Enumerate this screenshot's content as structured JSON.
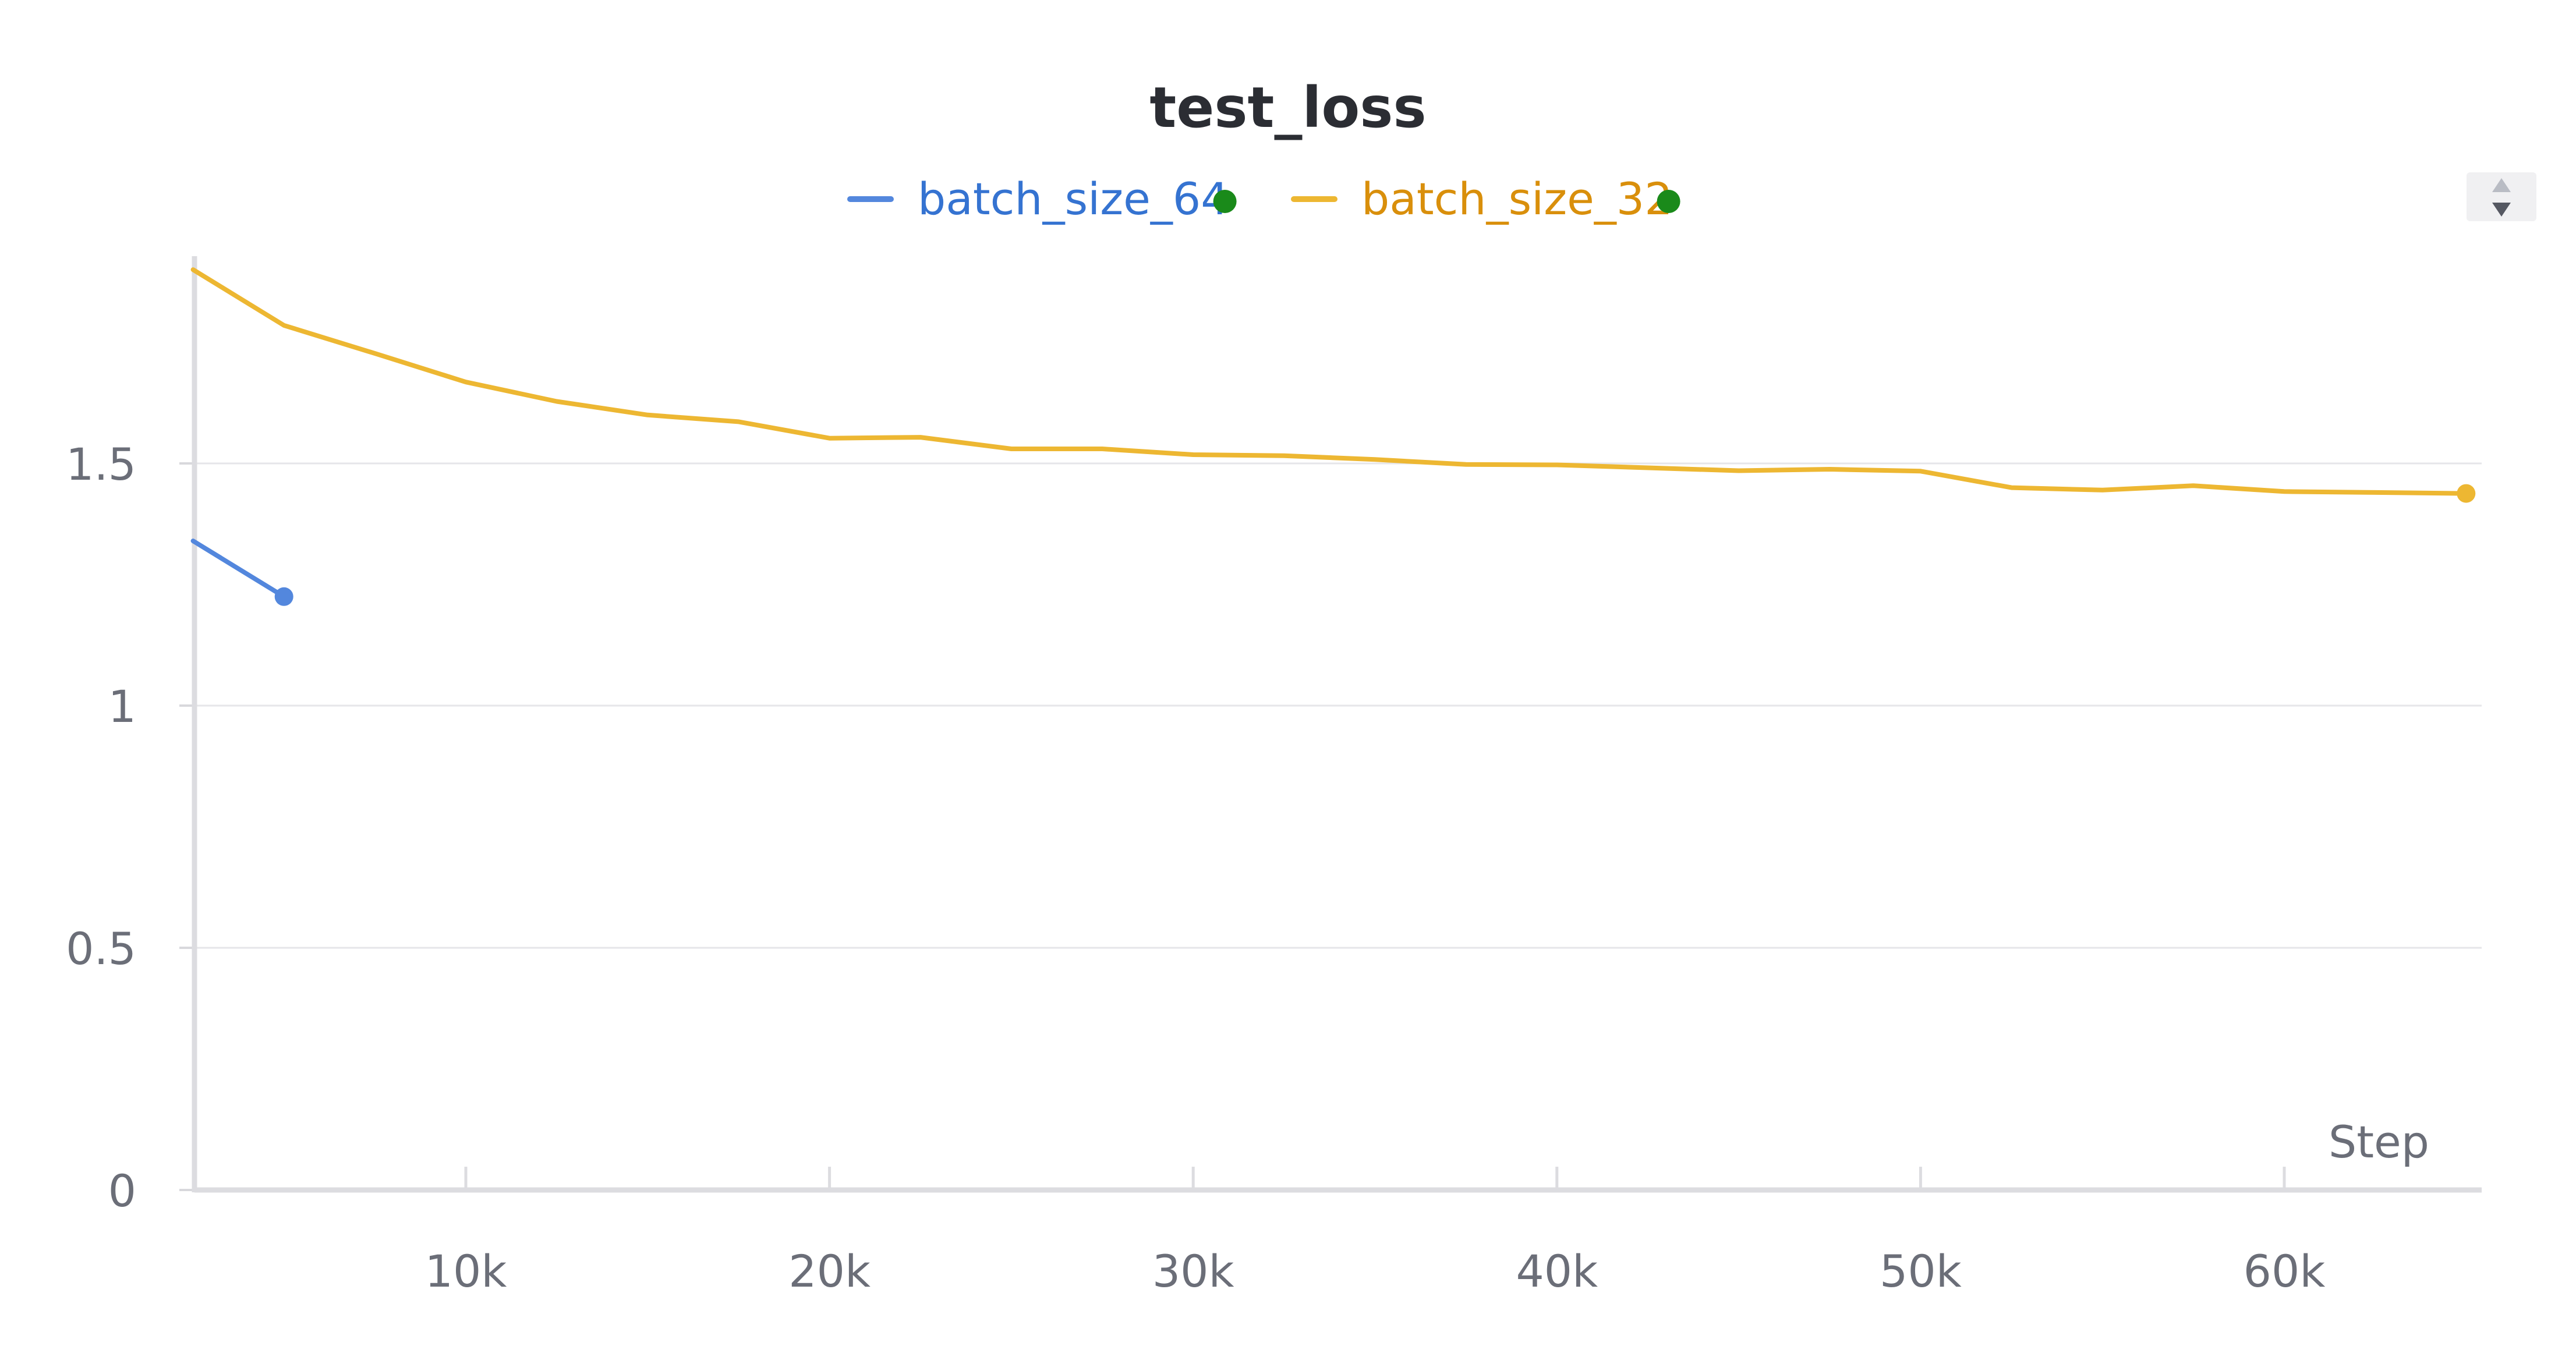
{
  "chart_data": {
    "type": "line",
    "title": "test_loss",
    "xlabel": "Step",
    "ylabel": "",
    "xlim": [
      2500,
      65500
    ],
    "ylim": [
      0,
      1.9
    ],
    "x_ticks": [
      10000,
      20000,
      30000,
      40000,
      50000,
      60000
    ],
    "x_tick_labels": [
      "10k",
      "20k",
      "30k",
      "40k",
      "50k",
      "60k"
    ],
    "y_ticks": [
      0,
      0.5,
      1,
      1.5
    ],
    "y_tick_labels": [
      "0",
      "0.5",
      "1",
      "1.5"
    ],
    "grid": true,
    "legend_position": "top-center",
    "series": [
      {
        "name": "batch_size_64",
        "color": "#5387dd",
        "status_color": "#1a8a1a",
        "x": [
          2500,
          5000
        ],
        "y": [
          1.34,
          1.225
        ]
      },
      {
        "name": "batch_size_32",
        "color": "#edb732",
        "status_color": "#1a8a1a",
        "x": [
          2500,
          5000,
          7500,
          10000,
          12500,
          15000,
          17500,
          20000,
          22500,
          25000,
          27500,
          30000,
          32500,
          35000,
          37500,
          40000,
          42500,
          45000,
          47500,
          50000,
          52500,
          55000,
          57500,
          60000,
          62500,
          65000
        ],
        "y": [
          1.9,
          1.785,
          1.727,
          1.668,
          1.628,
          1.6,
          1.586,
          1.552,
          1.554,
          1.53,
          1.53,
          1.518,
          1.516,
          1.508,
          1.498,
          1.497,
          1.491,
          1.485,
          1.488,
          1.484,
          1.45,
          1.445,
          1.454,
          1.442,
          1.44,
          1.438
        ]
      }
    ]
  },
  "toolbar": {
    "sort_icon": "sort-updown-icon"
  }
}
